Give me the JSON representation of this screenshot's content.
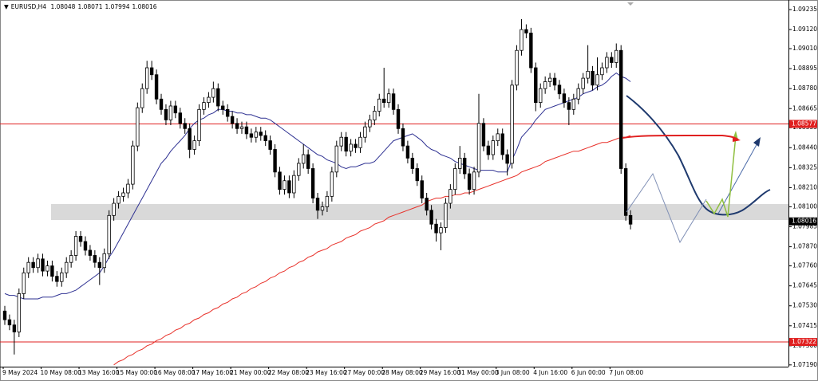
{
  "chart_data": {
    "type": "candlestick",
    "header": {
      "symbol": "EURUSD,H4",
      "quote": [
        1.08048,
        1.08071,
        1.07994,
        1.08016
      ]
    },
    "categories": [
      "9 May 2024",
      null,
      null,
      null,
      null,
      null,
      null,
      null,
      "10 May 08:00",
      null,
      null,
      null,
      null,
      null,
      null,
      null,
      "13 May 16:00",
      null,
      null,
      null,
      null,
      null,
      null,
      null,
      "15 May 00:00",
      null,
      null,
      null,
      null,
      null,
      null,
      null,
      "16 May 08:00",
      null,
      null,
      null,
      null,
      null,
      null,
      null,
      "17 May 16:00",
      null,
      null,
      null,
      null,
      null,
      null,
      null,
      "21 May 00:00",
      null,
      null,
      null,
      null,
      null,
      null,
      null,
      "22 May 08:00",
      null,
      null,
      null,
      null,
      null,
      null,
      null,
      "23 May 16:00",
      null,
      null,
      null,
      null,
      null,
      null,
      null,
      "27 May 00:00",
      null,
      null,
      null,
      null,
      null,
      null,
      null,
      "28 May 08:00",
      null,
      null,
      null,
      null,
      null,
      null,
      null,
      "29 May 16:00",
      null,
      null,
      null,
      null,
      null,
      null,
      null,
      "31 May 00:00",
      null,
      null,
      null,
      null,
      null,
      null,
      null,
      "3 Jun 08:00",
      null,
      null,
      null,
      null,
      null,
      null,
      null,
      "4 Jun 16:00",
      null,
      null,
      null,
      null,
      null,
      null,
      null,
      "6 Jun 00:00",
      null,
      null,
      null,
      null,
      null,
      null,
      null,
      "7 Jun 08:00",
      null,
      null,
      null,
      null
    ],
    "open": [
      1.075,
      1.0745,
      1.0742,
      1.0738,
      1.076,
      1.0772,
      1.0778,
      1.0775,
      1.078,
      1.0773,
      1.0776,
      1.077,
      1.0767,
      1.0772,
      1.0778,
      1.0782,
      1.0793,
      1.079,
      1.0785,
      1.0782,
      1.0778,
      1.0775,
      1.0783,
      1.0805,
      1.0812,
      1.0816,
      1.0818,
      1.0823,
      1.0845,
      1.0867,
      1.0878,
      1.089,
      1.0886,
      1.0872,
      1.0866,
      1.086,
      1.0868,
      1.0864,
      1.0858,
      1.0855,
      1.0843,
      1.0848,
      1.0866,
      1.087,
      1.0873,
      1.0878,
      1.0868,
      1.0866,
      1.0862,
      1.0858,
      1.0855,
      1.0856,
      1.0852,
      1.085,
      1.0853,
      1.0851,
      1.0848,
      1.0843,
      1.083,
      1.082,
      1.0825,
      1.0818,
      1.0828,
      1.0835,
      1.084,
      1.0832,
      1.0815,
      1.0808,
      1.081,
      1.0816,
      1.083,
      1.0845,
      1.085,
      1.0842,
      1.0846,
      1.0844,
      1.085,
      1.0856,
      1.086,
      1.0865,
      1.0872,
      1.087,
      1.0875,
      1.0866,
      1.0855,
      1.0845,
      1.0838,
      1.0832,
      1.0825,
      1.0815,
      1.0808,
      1.08,
      1.0795,
      1.0798,
      1.0812,
      1.082,
      1.0832,
      1.0838,
      1.0829,
      1.082,
      1.083,
      1.0858,
      1.0845,
      1.084,
      1.0848,
      1.0852,
      1.084,
      1.0835,
      1.088,
      1.09,
      1.0912,
      1.091,
      1.089,
      1.087,
      1.0878,
      1.0882,
      1.0884,
      1.088,
      1.0875,
      1.087,
      1.0866,
      1.0872,
      1.0878,
      1.0884,
      1.0888,
      1.088,
      1.0886,
      1.089,
      1.0896,
      1.0893,
      1.09,
      1.0832,
      1.0805
    ],
    "high": [
      1.0753,
      1.0748,
      1.0745,
      1.0763,
      1.0775,
      1.0781,
      1.0781,
      1.0783,
      1.0783,
      1.0779,
      1.0779,
      1.0773,
      1.0775,
      1.0781,
      1.0785,
      1.0796,
      1.0796,
      1.0793,
      1.0788,
      1.0785,
      1.0781,
      1.0786,
      1.0808,
      1.0815,
      1.0819,
      1.0821,
      1.0826,
      1.0848,
      1.087,
      1.0881,
      1.0894,
      1.0894,
      1.0889,
      1.0875,
      1.0869,
      1.0871,
      1.0871,
      1.0867,
      1.0861,
      1.0858,
      1.0851,
      1.0869,
      1.0873,
      1.0876,
      1.0882,
      1.0881,
      1.0871,
      1.0869,
      1.0865,
      1.0861,
      1.0859,
      1.0859,
      1.0855,
      1.0856,
      1.0856,
      1.0854,
      1.0851,
      1.0846,
      1.0833,
      1.0828,
      1.0828,
      1.0831,
      1.0838,
      1.0846,
      1.0843,
      1.0835,
      1.0818,
      1.0813,
      1.0819,
      1.0833,
      1.0848,
      1.0853,
      1.0853,
      1.0849,
      1.0849,
      1.0853,
      1.0859,
      1.0863,
      1.0868,
      1.0875,
      1.089,
      1.0878,
      1.0878,
      1.0869,
      1.0858,
      1.0848,
      1.0841,
      1.0835,
      1.0828,
      1.0818,
      1.0811,
      1.0803,
      1.0801,
      1.0815,
      1.0823,
      1.0835,
      1.0845,
      1.0841,
      1.0832,
      1.0833,
      1.0875,
      1.0861,
      1.0848,
      1.0851,
      1.0855,
      1.0855,
      1.0843,
      1.0883,
      1.0903,
      1.0918,
      1.0915,
      1.0913,
      1.0893,
      1.0881,
      1.0885,
      1.0887,
      1.0887,
      1.0883,
      1.0878,
      1.0873,
      1.0875,
      1.0881,
      1.0887,
      1.0903,
      1.0891,
      1.0896,
      1.0893,
      1.0899,
      1.0899,
      1.0904,
      1.0903,
      1.0835,
      1.0808
    ],
    "low": [
      1.0742,
      1.0739,
      1.0725,
      1.0735,
      1.0757,
      1.0769,
      1.0772,
      1.0772,
      1.077,
      1.077,
      1.0767,
      1.0764,
      1.0764,
      1.0769,
      1.0775,
      1.0779,
      1.0787,
      1.0782,
      1.0779,
      1.0775,
      1.0765,
      1.0772,
      1.078,
      1.0802,
      1.0809,
      1.0813,
      1.0815,
      1.082,
      1.0842,
      1.0864,
      1.0875,
      1.0883,
      1.0869,
      1.0863,
      1.0857,
      1.0857,
      1.0861,
      1.0855,
      1.0852,
      1.0838,
      1.084,
      1.0845,
      1.0863,
      1.0867,
      1.087,
      1.0865,
      1.0863,
      1.0859,
      1.0855,
      1.0852,
      1.0852,
      1.0849,
      1.0847,
      1.0847,
      1.0848,
      1.0845,
      1.084,
      1.0827,
      1.0817,
      1.0817,
      1.0815,
      1.0815,
      1.0825,
      1.0832,
      1.0829,
      1.0812,
      1.0803,
      1.0805,
      1.0807,
      1.0813,
      1.0827,
      1.0842,
      1.0839,
      1.0839,
      1.0841,
      1.0841,
      1.0847,
      1.0853,
      1.0857,
      1.0862,
      1.0867,
      1.0867,
      1.0863,
      1.0852,
      1.0842,
      1.0835,
      1.0829,
      1.0822,
      1.0812,
      1.0805,
      1.0797,
      1.079,
      1.0785,
      1.0795,
      1.0809,
      1.0817,
      1.0829,
      1.0826,
      1.0817,
      1.0817,
      1.0827,
      1.0842,
      1.0837,
      1.0837,
      1.0845,
      1.0837,
      1.0828,
      1.0832,
      1.0877,
      1.0897,
      1.0907,
      1.0887,
      1.0865,
      1.0867,
      1.0875,
      1.0879,
      1.0877,
      1.0872,
      1.0867,
      1.0857,
      1.0863,
      1.0869,
      1.0875,
      1.0881,
      1.0877,
      1.0877,
      1.0883,
      1.0887,
      1.089,
      1.089,
      1.0829,
      1.0802,
      1.0797
    ],
    "close": [
      1.0745,
      1.0742,
      1.0738,
      1.076,
      1.0772,
      1.0778,
      1.0775,
      1.078,
      1.0773,
      1.0776,
      1.077,
      1.0767,
      1.0772,
      1.0778,
      1.0782,
      1.0793,
      1.079,
      1.0785,
      1.0782,
      1.0778,
      1.0775,
      1.0783,
      1.0805,
      1.0812,
      1.0816,
      1.0818,
      1.0823,
      1.0845,
      1.0867,
      1.0878,
      1.089,
      1.0886,
      1.0872,
      1.0866,
      1.086,
      1.0868,
      1.0864,
      1.0858,
      1.0855,
      1.0843,
      1.0848,
      1.0866,
      1.087,
      1.0873,
      1.0878,
      1.0868,
      1.0866,
      1.0862,
      1.0858,
      1.0855,
      1.0856,
      1.0852,
      1.085,
      1.0853,
      1.0851,
      1.0848,
      1.0843,
      1.083,
      1.082,
      1.0825,
      1.0818,
      1.0828,
      1.0835,
      1.084,
      1.0832,
      1.0815,
      1.0808,
      1.081,
      1.0816,
      1.083,
      1.0845,
      1.085,
      1.0842,
      1.0846,
      1.0844,
      1.085,
      1.0856,
      1.086,
      1.0865,
      1.0872,
      1.087,
      1.0875,
      1.0866,
      1.0855,
      1.0845,
      1.0838,
      1.0832,
      1.0825,
      1.0815,
      1.0808,
      1.08,
      1.0795,
      1.0798,
      1.0812,
      1.082,
      1.0832,
      1.0838,
      1.0829,
      1.082,
      1.083,
      1.0858,
      1.0845,
      1.084,
      1.0848,
      1.0852,
      1.084,
      1.0835,
      1.088,
      1.09,
      1.0912,
      1.091,
      1.089,
      1.087,
      1.0878,
      1.0882,
      1.0884,
      1.088,
      1.0875,
      1.087,
      1.0866,
      1.0872,
      1.0878,
      1.0884,
      1.0888,
      1.088,
      1.0886,
      1.089,
      1.0896,
      1.0893,
      1.09,
      1.0832,
      1.0805,
      1.08
    ],
    "up_color": "#ffffff",
    "down_color": "#000000",
    "lines": [
      {
        "color": "#2e3192",
        "values": [
          1.076,
          1.0759,
          1.0759,
          1.0758,
          1.0757,
          1.0757,
          1.0757,
          1.0757,
          1.0758,
          1.0758,
          1.0758,
          1.0759,
          1.076,
          1.076,
          1.0761,
          1.0762,
          1.0764,
          1.0766,
          1.0768,
          1.077,
          1.0772,
          1.0776,
          1.0781,
          1.0785,
          1.079,
          1.0795,
          1.08,
          1.0805,
          1.081,
          1.0815,
          1.082,
          1.0825,
          1.083,
          1.0835,
          1.0838,
          1.0842,
          1.0845,
          1.0848,
          1.0851,
          1.0855,
          1.0858,
          1.086,
          1.0861,
          1.0863,
          1.0864,
          1.0866,
          1.0866,
          1.0865,
          1.0865,
          1.0864,
          1.0864,
          1.0863,
          1.0863,
          1.0862,
          1.0861,
          1.0861,
          1.086,
          1.0858,
          1.0856,
          1.0854,
          1.0852,
          1.085,
          1.0848,
          1.0846,
          1.0844,
          1.0842,
          1.084,
          1.0839,
          1.0837,
          1.0836,
          1.0835,
          1.0833,
          1.0832,
          1.0833,
          1.0833,
          1.0834,
          1.0835,
          1.0835,
          1.0836,
          1.0839,
          1.0842,
          1.0845,
          1.0848,
          1.0849,
          1.085,
          1.0851,
          1.0852,
          1.085,
          1.0848,
          1.0845,
          1.0843,
          1.0842,
          1.084,
          1.0839,
          1.0838,
          1.0836,
          1.0835,
          1.0834,
          1.0833,
          1.0832,
          1.0831,
          1.0831,
          1.0831,
          1.0831,
          1.083,
          1.083,
          1.083,
          1.0837,
          1.0843,
          1.085,
          1.0853,
          1.0856,
          1.086,
          1.0863,
          1.0866,
          1.0867,
          1.0868,
          1.0869,
          1.087,
          1.0871,
          1.0872,
          1.0873,
          1.0875,
          1.0876,
          1.0877,
          1.0879,
          1.088,
          1.0882,
          1.0885,
          1.0887,
          1.0885,
          1.0884,
          1.0882
        ]
      },
      {
        "color": "#e8312a",
        "values": [
          null,
          null,
          null,
          null,
          null,
          null,
          null,
          null,
          null,
          null,
          null,
          null,
          null,
          null,
          null,
          null,
          null,
          null,
          null,
          null,
          null,
          null,
          null,
          1.0719,
          1.0721,
          1.0722,
          1.0724,
          1.0725,
          1.0727,
          1.0728,
          1.073,
          1.0731,
          1.0733,
          1.0734,
          1.0736,
          1.0737,
          1.0739,
          1.074,
          1.0742,
          1.0743,
          1.0745,
          1.0746,
          1.0748,
          1.0749,
          1.0751,
          1.0752,
          1.0754,
          1.0755,
          1.0757,
          1.0758,
          1.076,
          1.0761,
          1.0763,
          1.0764,
          1.0766,
          1.0767,
          1.0769,
          1.077,
          1.0772,
          1.0773,
          1.0775,
          1.0776,
          1.0778,
          1.0779,
          1.0781,
          1.0782,
          1.0784,
          1.0785,
          1.0786,
          1.0788,
          1.0789,
          1.079,
          1.0792,
          1.0793,
          1.0794,
          1.0796,
          1.0797,
          1.0798,
          1.08,
          1.0801,
          1.0802,
          1.0804,
          1.0805,
          1.0806,
          1.0807,
          1.0808,
          1.0809,
          1.081,
          1.0811,
          1.0813,
          1.0814,
          1.0815,
          1.0815,
          1.0816,
          1.0816,
          1.0817,
          1.0817,
          1.0818,
          1.0818,
          1.0819,
          1.082,
          1.0821,
          1.0822,
          1.0823,
          1.0824,
          1.0825,
          1.0826,
          1.0827,
          1.0828,
          1.083,
          1.0831,
          1.0832,
          1.0833,
          1.0834,
          1.0836,
          1.0837,
          1.0838,
          1.0839,
          1.084,
          1.0841,
          1.0842,
          1.0842,
          1.0843,
          1.0844,
          1.0845,
          1.0846,
          1.0847,
          1.0847,
          1.0848,
          1.0849,
          1.085,
          1.085,
          1.0851
        ]
      }
    ],
    "levels": [
      1.08577,
      1.07322
    ],
    "level_color": "#e02020",
    "ylim": [
      1.0718,
      1.0929
    ],
    "yticks": [
      1.09235,
      {
        "value": 1.0912,
        "label": "1.09120"
      },
      {
        "value": 1.0901,
        "label": "1.09010"
      },
      1.08895,
      {
        "value": 1.0878,
        "label": "1.08780"
      },
      1.08665,
      1.08555,
      {
        "value": 1.0844,
        "label": "1.08440"
      },
      1.08325,
      {
        "value": 1.0821,
        "label": "1.08210"
      },
      {
        "value": 1.081,
        "label": "1.08100"
      },
      1.07985,
      {
        "value": 1.0787,
        "label": "1.07870"
      },
      {
        "value": 1.0776,
        "label": "1.07760"
      },
      1.07645,
      {
        "value": 1.0753,
        "label": "1.07530"
      },
      1.07415,
      {
        "value": 1.073,
        "label": "1.07300"
      },
      {
        "value": 1.0719,
        "label": "1.07190"
      }
    ],
    "grid": false
  }
}
